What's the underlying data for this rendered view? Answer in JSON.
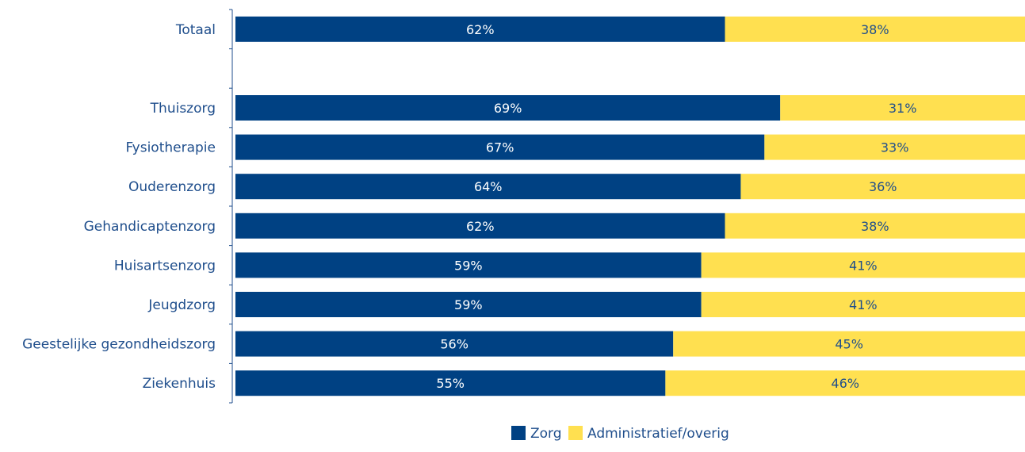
{
  "chart_data": {
    "type": "bar",
    "orientation": "horizontal",
    "stacked": true,
    "categories": [
      "Totaal",
      "",
      "Thuiszorg",
      "Fysiotherapie",
      "Ouderenzorg",
      "Gehandicaptenzorg",
      "Huisartsenzorg",
      "Jeugdzorg",
      "Geestelijke gezondheidszorg",
      "Ziekenhuis"
    ],
    "series": [
      {
        "name": "Zorg",
        "color": "#004183",
        "values": [
          62,
          null,
          69,
          67,
          64,
          62,
          59,
          59,
          56,
          55
        ],
        "labels": [
          "62%",
          "",
          "69%",
          "67%",
          "64%",
          "62%",
          "59%",
          "59%",
          "56%",
          "55%"
        ]
      },
      {
        "name": "Administratief/overig",
        "color": "#ffe050",
        "values": [
          38,
          null,
          31,
          33,
          36,
          38,
          41,
          41,
          45,
          46
        ],
        "labels": [
          "38%",
          "",
          "31%",
          "33%",
          "36%",
          "38%",
          "41%",
          "41%",
          "45%",
          "46%"
        ]
      }
    ],
    "xlim": [
      0,
      100
    ],
    "grid": false,
    "legend_position": "bottom"
  }
}
